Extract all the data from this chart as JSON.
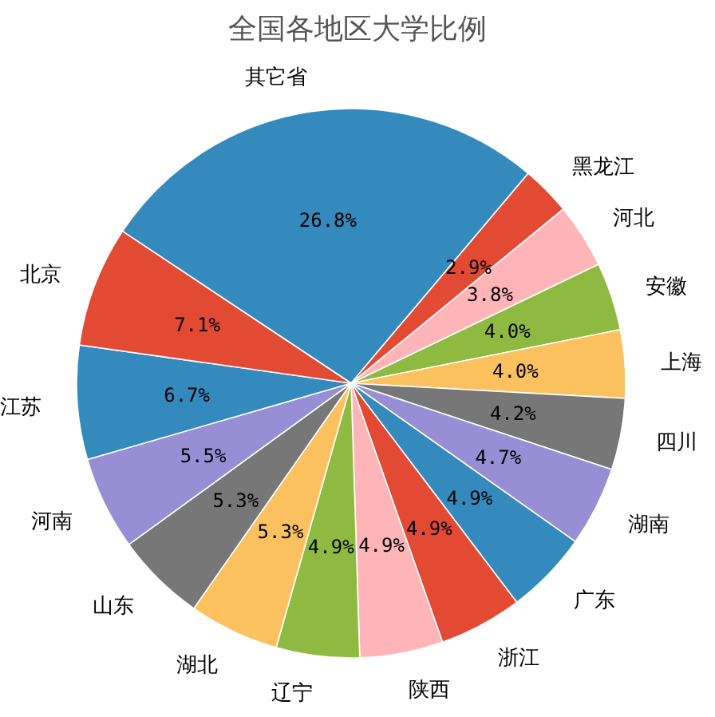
{
  "chart_data": {
    "type": "pie",
    "title": "全国各地区大学比例",
    "categories": [
      "其它省",
      "黑龙江",
      "河北",
      "安徽",
      "上海",
      "四川",
      "湖南",
      "广东",
      "浙江",
      "陕西",
      "辽宁",
      "湖北",
      "山东",
      "河南",
      "江苏",
      "北京"
    ],
    "values": [
      26.8,
      2.9,
      3.8,
      4.0,
      4.0,
      4.2,
      4.7,
      4.9,
      4.9,
      4.9,
      4.9,
      5.3,
      5.3,
      5.5,
      6.7,
      7.1
    ],
    "value_labels": [
      "26.8%",
      "2.9%",
      "3.8%",
      "4.0%",
      "4.0%",
      "4.2%",
      "4.7%",
      "4.9%",
      "4.9%",
      "4.9%",
      "4.9%",
      "5.3%",
      "5.3%",
      "5.5%",
      "6.7%",
      "7.1%"
    ],
    "colors": [
      "#348abd",
      "#e24a33",
      "#ffb5b8",
      "#8eba42",
      "#fbc15e",
      "#777777",
      "#988ed5",
      "#348abd",
      "#e24a33",
      "#ffb5b8",
      "#8eba42",
      "#fbc15e",
      "#777777",
      "#988ed5",
      "#348abd",
      "#e24a33"
    ],
    "legend": false
  }
}
